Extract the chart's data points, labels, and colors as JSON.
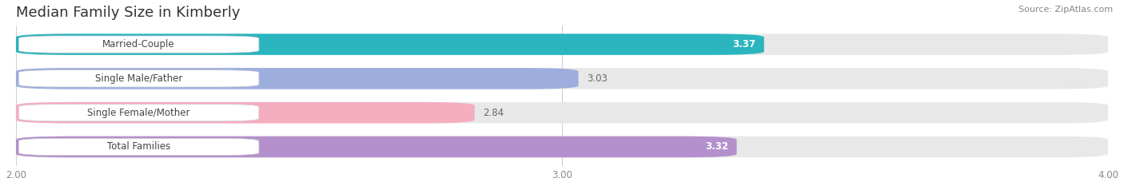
{
  "title": "Median Family Size in Kimberly",
  "source": "Source: ZipAtlas.com",
  "categories": [
    "Married-Couple",
    "Single Male/Father",
    "Single Female/Mother",
    "Total Families"
  ],
  "values": [
    3.37,
    3.03,
    2.84,
    3.32
  ],
  "bar_colors": [
    "#2ab5bf",
    "#9daede",
    "#f5adc0",
    "#b491cc"
  ],
  "value_inside": [
    true,
    false,
    false,
    true
  ],
  "xmin": 2.0,
  "xmax": 4.0,
  "xticks": [
    2.0,
    3.0,
    4.0
  ],
  "background_color": "#ffffff",
  "bar_background_color": "#e8e8e8",
  "title_fontsize": 13,
  "label_fontsize": 8.5,
  "value_fontsize": 8.5,
  "source_fontsize": 8
}
